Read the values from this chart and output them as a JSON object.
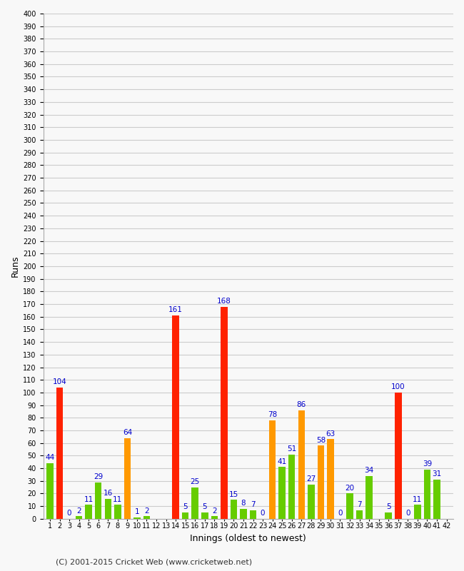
{
  "xlabel": "Innings (oldest to newest)",
  "ylabel": "Runs",
  "footer": "(C) 2001-2015 Cricket Web (www.cricketweb.net)",
  "ylim": [
    0,
    400
  ],
  "yticks": [
    0,
    10,
    20,
    30,
    40,
    50,
    60,
    70,
    80,
    90,
    100,
    110,
    120,
    130,
    140,
    150,
    160,
    170,
    180,
    190,
    200,
    210,
    220,
    230,
    240,
    250,
    260,
    270,
    280,
    290,
    300,
    310,
    320,
    330,
    340,
    350,
    360,
    370,
    380,
    390,
    400
  ],
  "innings": [
    1,
    2,
    3,
    4,
    5,
    6,
    7,
    8,
    9,
    10,
    11,
    12,
    13,
    14,
    15,
    16,
    17,
    18,
    19,
    20,
    21,
    22,
    23,
    24,
    25,
    26,
    27,
    28,
    29,
    30,
    31,
    32,
    33,
    34,
    35,
    36,
    37,
    38,
    39,
    40,
    41,
    42
  ],
  "values": [
    44,
    104,
    0,
    2,
    11,
    29,
    16,
    11,
    64,
    1,
    2,
    0,
    0,
    161,
    5,
    25,
    5,
    2,
    168,
    15,
    8,
    7,
    0,
    78,
    41,
    51,
    86,
    27,
    58,
    63,
    0,
    20,
    7,
    34,
    0,
    5,
    100,
    0,
    11,
    39,
    31,
    0
  ],
  "colors": [
    "#66cc00",
    "#ff2200",
    "#66cc00",
    "#66cc00",
    "#66cc00",
    "#66cc00",
    "#66cc00",
    "#66cc00",
    "#ff9900",
    "#66cc00",
    "#66cc00",
    "#66cc00",
    "#66cc00",
    "#ff2200",
    "#66cc00",
    "#66cc00",
    "#66cc00",
    "#66cc00",
    "#ff2200",
    "#66cc00",
    "#66cc00",
    "#66cc00",
    "#66cc00",
    "#ff9900",
    "#66cc00",
    "#66cc00",
    "#ff9900",
    "#66cc00",
    "#ff9900",
    "#ff9900",
    "#66cc00",
    "#66cc00",
    "#66cc00",
    "#66cc00",
    "#66cc00",
    "#66cc00",
    "#ff2200",
    "#66cc00",
    "#66cc00",
    "#66cc00",
    "#66cc00",
    "#66cc00"
  ],
  "show_label": [
    true,
    true,
    true,
    true,
    true,
    true,
    true,
    true,
    true,
    true,
    true,
    false,
    false,
    true,
    true,
    true,
    true,
    true,
    true,
    true,
    true,
    true,
    true,
    true,
    true,
    true,
    true,
    true,
    true,
    true,
    true,
    true,
    true,
    true,
    false,
    true,
    true,
    true,
    true,
    true,
    true,
    false
  ],
  "green_color": "#66cc00",
  "red_color": "#ff2200",
  "orange_color": "#ff9900",
  "label_color": "#0000cc",
  "label_fontsize": 7.5,
  "bg_color": "#f8f8f8",
  "grid_color": "#cccccc",
  "tick_fontsize": 7,
  "axis_label_fontsize": 9,
  "footer_fontsize": 8
}
